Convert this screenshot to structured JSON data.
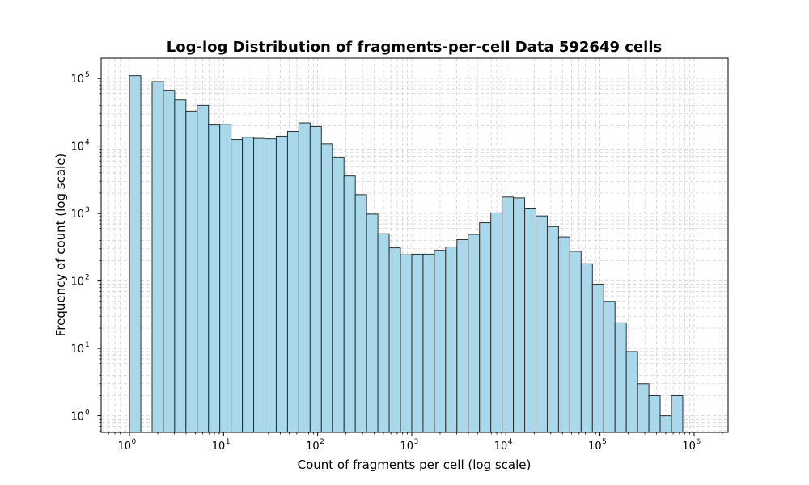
{
  "chart_data": {
    "type": "bar",
    "title": "Log-log Distribution of fragments-per-cell Data 592649 cells",
    "xlabel": "Count of fragments per cell (log scale)",
    "ylabel": "Frequency of count (log scale)",
    "x_scale": "log",
    "y_scale": "log",
    "xlim": [
      0.5,
      2300000.0
    ],
    "ylim": [
      0.57,
      200000.0
    ],
    "grid": true,
    "x_ticks": [
      {
        "base": "10",
        "exp": "0",
        "value": 1
      },
      {
        "base": "10",
        "exp": "1",
        "value": 10
      },
      {
        "base": "10",
        "exp": "2",
        "value": 100
      },
      {
        "base": "10",
        "exp": "3",
        "value": 1000
      },
      {
        "base": "10",
        "exp": "4",
        "value": 10000
      },
      {
        "base": "10",
        "exp": "5",
        "value": 100000
      },
      {
        "base": "10",
        "exp": "6",
        "value": 1000000
      }
    ],
    "y_ticks": [
      {
        "base": "10",
        "exp": "0",
        "value": 1
      },
      {
        "base": "10",
        "exp": "1",
        "value": 10
      },
      {
        "base": "10",
        "exp": "2",
        "value": 100
      },
      {
        "base": "10",
        "exp": "3",
        "value": 1000
      },
      {
        "base": "10",
        "exp": "4",
        "value": 10000
      },
      {
        "base": "10",
        "exp": "5",
        "value": 100000
      }
    ],
    "bin_edges": [
      1.0,
      1.32,
      1.74,
      2.29,
      3.02,
      3.98,
      5.25,
      6.92,
      9.12,
      12.02,
      15.85,
      20.89,
      27.54,
      36.31,
      47.86,
      63.1,
      83.18,
      109.6,
      144.5,
      190.5,
      251.2,
      331.1,
      436.5,
      575.4,
      758.6,
      1000.0,
      1318.3,
      1737.8,
      2290.9,
      3019.9,
      3981.1,
      5248.1,
      6918.3,
      9120.1,
      12022.6,
      15848.9,
      20893.0,
      27542.3,
      36307.8,
      47863.0,
      63095.7,
      83176.4,
      109647.8,
      144544.0,
      190546.1,
      251188.6,
      331131.1,
      436515.8,
      575439.9,
      758577.6,
      1000000.0,
      1318256.7
    ],
    "values": [
      110000,
      0,
      90000,
      67000,
      48000,
      33000,
      40000,
      20500,
      21000,
      12500,
      13500,
      13000,
      12800,
      14000,
      16500,
      22000,
      19500,
      10800,
      6800,
      3600,
      1900,
      980,
      500,
      310,
      245,
      250,
      250,
      285,
      320,
      410,
      490,
      730,
      1020,
      1750,
      1700,
      1200,
      920,
      640,
      450,
      275,
      180,
      90,
      50,
      24,
      9,
      3,
      2,
      1,
      2,
      0,
      0
    ],
    "bar_color": "#a9d8ea",
    "edge_color": "#2e2e2e"
  }
}
